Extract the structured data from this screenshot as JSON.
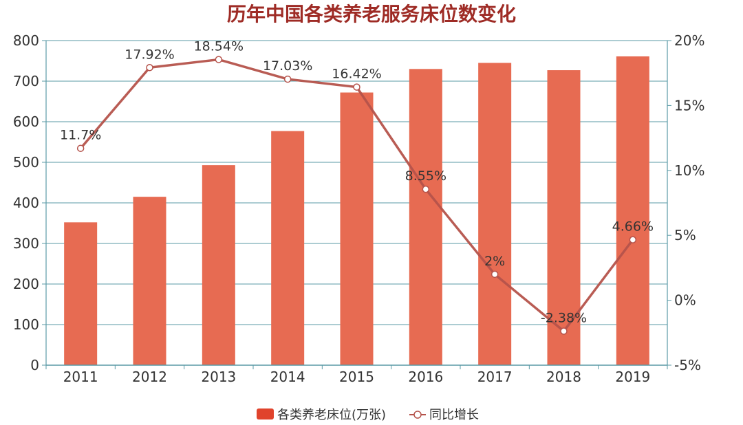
{
  "chart_data": {
    "type": "bar",
    "title": "历年中国各类养老服务床位数变化",
    "categories": [
      "2011",
      "2012",
      "2013",
      "2014",
      "2015",
      "2016",
      "2017",
      "2018",
      "2019"
    ],
    "series": [
      {
        "name": "各类养老床位(万张)",
        "type": "bar",
        "axis": "left",
        "values": [
          352,
          415,
          493,
          577,
          672,
          730,
          745,
          727,
          761
        ]
      },
      {
        "name": "同比增长",
        "type": "line",
        "axis": "right",
        "values": [
          11.7,
          17.92,
          18.54,
          17.03,
          16.42,
          8.55,
          2,
          -2.38,
          4.66
        ],
        "labels": [
          "11.7%",
          "17.92%",
          "18.54%",
          "17.03%",
          "16.42%",
          "8.55%",
          "2%",
          "-2.38%",
          "4.66%"
        ]
      }
    ],
    "y_left": {
      "ylim": [
        0,
        800
      ],
      "ticks": [
        0,
        100,
        200,
        300,
        400,
        500,
        600,
        700,
        800
      ],
      "tick_labels": [
        "0",
        "100",
        "200",
        "300",
        "400",
        "500",
        "600",
        "700",
        "800"
      ]
    },
    "y_right": {
      "ylim": [
        -5,
        20
      ],
      "ticks": [
        -5,
        0,
        5,
        10,
        15,
        20
      ],
      "tick_labels": [
        "-5%",
        "0%",
        "5%",
        "10%",
        "15%",
        "20%"
      ]
    },
    "grid": true,
    "legend_position": "bottom-center",
    "colors": {
      "title": "#9e2b25",
      "bar": "#e76b52",
      "line": "#b5534b",
      "marker_fill": "#ffffff",
      "axis": "#5a9aa6",
      "grid": "#5a9aa6",
      "legend_bar": "#e0432c"
    }
  }
}
